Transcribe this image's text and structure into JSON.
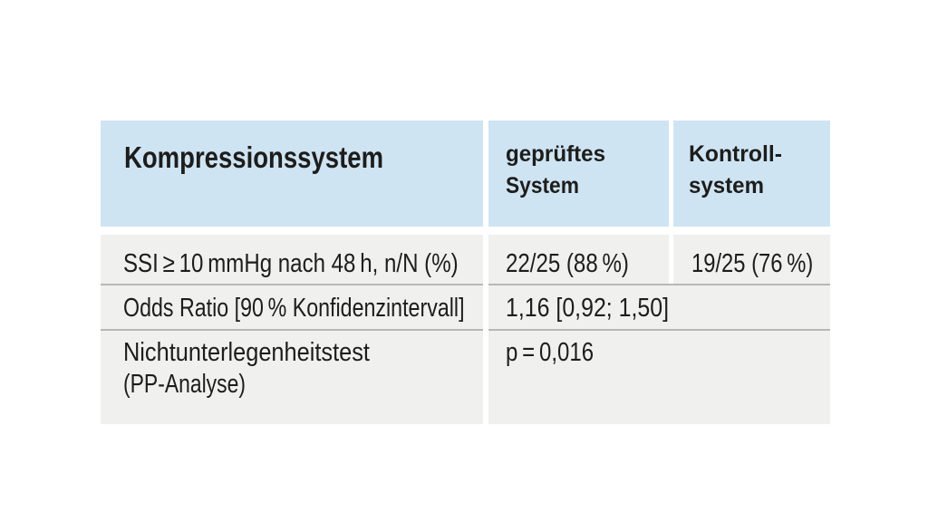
{
  "colors": {
    "page_background": "#ffffff",
    "header_background": "#cfe4f3",
    "row_background": "#f0f0ee",
    "separator_line": "#b4b4b4",
    "text": "#1d1d1b"
  },
  "chart_data": {
    "type": "table",
    "columns": [
      "Kompressionssystem",
      "geprüftes System",
      "Kontrollsystem"
    ],
    "rows": [
      [
        "SSI ≥ 10 mmHg nach 48 h, n/N (%)",
        "22/25 (88 %)",
        "19/25 (76 %)"
      ],
      [
        "Odds Ratio [90 % Konfidenzintervall]",
        "1,16 [0,92; 1,50]",
        ""
      ],
      [
        "Nichtunterlegenheitstest (PP-Analyse)",
        "p = 0,016",
        ""
      ]
    ]
  },
  "header": {
    "col1": "Kompressionssystem",
    "col2": {
      "line1": "geprüftes",
      "line2": "System"
    },
    "col3": {
      "line1": "Kontroll-",
      "line2": "system"
    }
  },
  "rows": {
    "r1": {
      "label": "SSI ≥ 10 mmHg nach 48 h, n/N (%)",
      "tested": "22/25 (88 %)",
      "control": "19/25 (76 %)"
    },
    "r2": {
      "label": "Odds Ratio [90 % Konfidenzintervall]",
      "value": "1,16 [0,92; 1,50]"
    },
    "r3": {
      "label_line1": "Nichtunterlegenheitstest",
      "label_line2": "(PP-Analyse)",
      "value": "p = 0,016"
    }
  }
}
